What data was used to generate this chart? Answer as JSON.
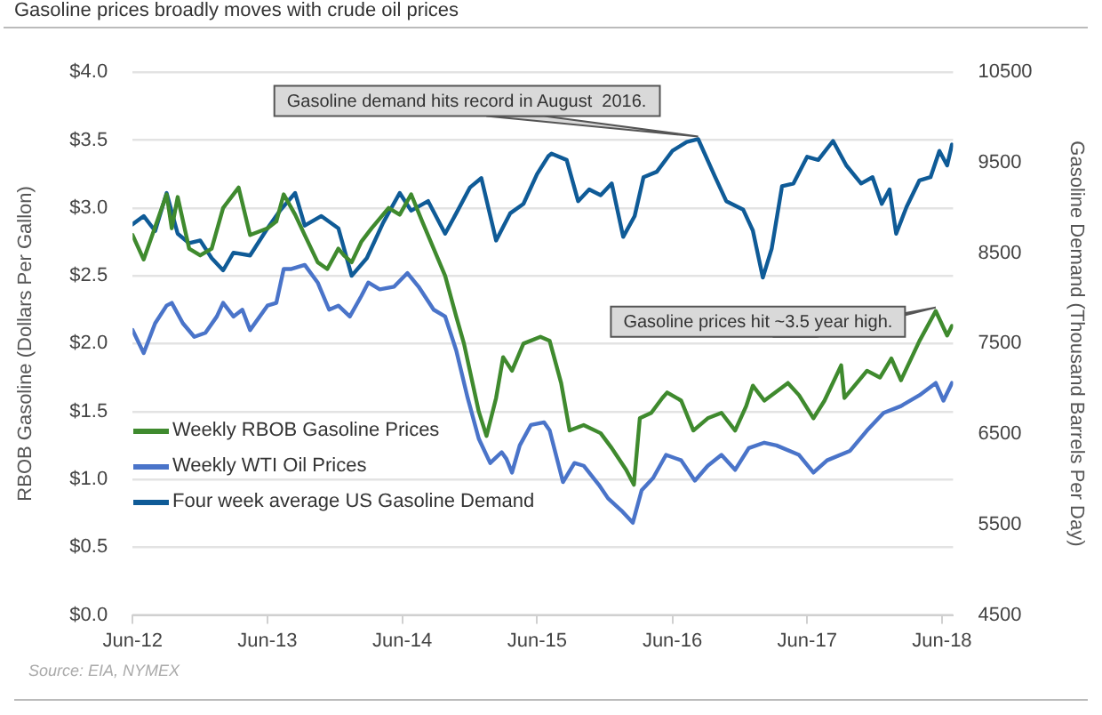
{
  "chart_data": {
    "type": "line",
    "title": "Gasoline prices broadly moves with crude oil prices",
    "ylabel": "RBOB Gasoline (Dollars Per Gallon)",
    "y2label": "Gasoline Demand (Thousand Barrels Per Day)",
    "xlim": [
      "2012-06-01",
      "2018-07-01"
    ],
    "xticks": [
      {
        "value": "2012-06-01",
        "label": "Jun-12"
      },
      {
        "value": "2013-06-01",
        "label": "Jun-13"
      },
      {
        "value": "2014-06-01",
        "label": "Jun-14"
      },
      {
        "value": "2015-06-01",
        "label": "Jun-15"
      },
      {
        "value": "2016-06-01",
        "label": "Jun-16"
      },
      {
        "value": "2017-06-01",
        "label": "Jun-17"
      },
      {
        "value": "2018-06-01",
        "label": "Jun-18"
      }
    ],
    "ylim": [
      0,
      4
    ],
    "yticks": [
      {
        "value": 0,
        "label": "$0.0"
      },
      {
        "value": 0.5,
        "label": "$0.5"
      },
      {
        "value": 1,
        "label": "$1.0"
      },
      {
        "value": 1.5,
        "label": "$1.5"
      },
      {
        "value": 2,
        "label": "$2.0"
      },
      {
        "value": 2.5,
        "label": "$2.5"
      },
      {
        "value": 3,
        "label": "$3.0"
      },
      {
        "value": 3.5,
        "label": "$3.5"
      },
      {
        "value": 4,
        "label": "$4.0"
      }
    ],
    "y2lim": [
      4500,
      10500
    ],
    "y2ticks": [
      4500,
      5500,
      6500,
      7500,
      8500,
      9500,
      10500
    ],
    "grid": "y",
    "legend": "bottom left",
    "marker": "none",
    "line_style": "solid",
    "series": [
      {
        "name": "Weekly RBOB Gasoline Prices",
        "color": "#3f8a2e",
        "x": [
          "2012-06-01",
          "2012-07-01",
          "2012-09-01",
          "2012-09-15",
          "2012-10-01",
          "2012-11-01",
          "2012-12-01",
          "2013-01-01",
          "2013-02-01",
          "2013-03-15",
          "2013-04-15",
          "2013-06-01",
          "2013-06-25",
          "2013-07-15",
          "2013-08-15",
          "2013-09-10",
          "2013-10-15",
          "2013-11-10",
          "2013-12-10",
          "2013-12-25",
          "2014-01-15",
          "2014-02-10",
          "2014-03-10",
          "2014-04-25",
          "2014-05-25",
          "2014-06-25",
          "2014-07-25",
          "2014-08-25",
          "2014-09-25",
          "2014-10-25",
          "2014-11-15",
          "2014-12-25",
          "2015-01-15",
          "2015-02-10",
          "2015-03-01",
          "2015-03-25",
          "2015-04-25",
          "2015-06-10",
          "2015-07-05",
          "2015-08-05",
          "2015-08-28",
          "2015-10-05",
          "2015-11-20",
          "2015-12-20",
          "2016-01-28",
          "2016-02-18",
          "2016-03-05",
          "2016-04-05",
          "2016-05-05",
          "2016-05-18",
          "2016-06-25",
          "2016-07-28",
          "2016-09-05",
          "2016-10-12",
          "2016-11-18",
          "2016-12-18",
          "2017-01-05",
          "2017-02-05",
          "2017-04-10",
          "2017-05-10",
          "2017-06-18",
          "2017-07-18",
          "2017-09-01",
          "2017-09-10",
          "2017-11-10",
          "2017-12-15",
          "2018-01-15",
          "2018-02-10",
          "2018-04-01",
          "2018-05-15",
          "2018-06-15",
          "2018-06-28"
        ],
        "values": [
          2.8,
          2.62,
          3.1,
          2.85,
          3.08,
          2.7,
          2.65,
          2.7,
          3.0,
          3.15,
          2.8,
          2.85,
          2.9,
          3.1,
          2.95,
          2.8,
          2.6,
          2.55,
          2.7,
          2.65,
          2.6,
          2.75,
          2.85,
          3.0,
          2.95,
          3.1,
          2.9,
          2.7,
          2.5,
          2.2,
          2.0,
          1.5,
          1.32,
          1.6,
          1.9,
          1.8,
          2.0,
          2.05,
          2.02,
          1.71,
          1.36,
          1.4,
          1.34,
          1.23,
          1.07,
          0.96,
          1.45,
          1.49,
          1.6,
          1.64,
          1.58,
          1.36,
          1.45,
          1.49,
          1.36,
          1.54,
          1.69,
          1.58,
          1.71,
          1.62,
          1.45,
          1.58,
          1.84,
          1.6,
          1.8,
          1.75,
          1.89,
          1.73,
          2.02,
          2.24,
          2.06,
          2.13
        ]
      },
      {
        "name": "Weekly WTI Oil Prices",
        "color": "#4a74c9",
        "x": [
          "2012-06-01",
          "2012-07-01",
          "2012-08-01",
          "2012-09-01",
          "2012-09-15",
          "2012-10-15",
          "2012-11-15",
          "2012-12-15",
          "2013-01-15",
          "2013-02-01",
          "2013-03-01",
          "2013-03-25",
          "2013-04-15",
          "2013-06-01",
          "2013-06-25",
          "2013-07-15",
          "2013-08-05",
          "2013-09-10",
          "2013-10-15",
          "2013-11-15",
          "2013-12-10",
          "2014-01-10",
          "2014-02-10",
          "2014-03-01",
          "2014-04-01",
          "2014-05-10",
          "2014-06-15",
          "2014-07-15",
          "2014-08-25",
          "2014-09-25",
          "2014-10-25",
          "2014-11-25",
          "2014-12-25",
          "2015-01-25",
          "2015-02-25",
          "2015-03-10",
          "2015-03-25",
          "2015-04-15",
          "2015-05-15",
          "2015-06-20",
          "2015-07-05",
          "2015-08-10",
          "2015-09-10",
          "2015-10-05",
          "2015-11-15",
          "2015-12-10",
          "2016-01-15",
          "2016-02-15",
          "2016-03-10",
          "2016-04-10",
          "2016-05-15",
          "2016-06-25",
          "2016-08-01",
          "2016-09-05",
          "2016-10-12",
          "2016-11-18",
          "2016-12-25",
          "2017-02-05",
          "2017-03-10",
          "2017-05-10",
          "2017-06-18",
          "2017-07-25",
          "2017-09-25",
          "2017-11-10",
          "2017-12-25",
          "2018-02-10",
          "2018-04-01",
          "2018-05-15",
          "2018-06-05",
          "2018-06-28"
        ],
        "values": [
          2.1,
          1.93,
          2.15,
          2.28,
          2.3,
          2.15,
          2.05,
          2.08,
          2.2,
          2.3,
          2.2,
          2.25,
          2.1,
          2.28,
          2.3,
          2.55,
          2.55,
          2.58,
          2.45,
          2.25,
          2.28,
          2.2,
          2.35,
          2.45,
          2.4,
          2.42,
          2.52,
          2.42,
          2.25,
          2.2,
          1.95,
          1.6,
          1.3,
          1.12,
          1.2,
          1.15,
          1.05,
          1.25,
          1.4,
          1.42,
          1.36,
          0.98,
          1.12,
          1.1,
          0.96,
          0.86,
          0.77,
          0.68,
          0.92,
          1.01,
          1.18,
          1.14,
          0.99,
          1.1,
          1.18,
          1.07,
          1.23,
          1.27,
          1.25,
          1.18,
          1.05,
          1.14,
          1.21,
          1.36,
          1.49,
          1.54,
          1.62,
          1.71,
          1.58,
          1.71
        ]
      },
      {
        "name": "Four week average US Gasoline Demand",
        "color": "#0f5b97",
        "axis": "y2",
        "x": [
          "2012-06-01",
          "2012-07-01",
          "2012-08-01",
          "2012-09-01",
          "2012-10-01",
          "2012-11-01",
          "2012-12-01",
          "2013-01-01",
          "2013-02-01",
          "2013-03-01",
          "2013-04-15",
          "2013-06-01",
          "2013-07-05",
          "2013-08-15",
          "2013-09-10",
          "2013-10-25",
          "2013-12-10",
          "2014-01-15",
          "2014-02-25",
          "2014-04-10",
          "2014-05-25",
          "2014-06-25",
          "2014-08-10",
          "2014-09-25",
          "2014-10-25",
          "2014-12-01",
          "2015-01-01",
          "2015-02-10",
          "2015-03-20",
          "2015-04-25",
          "2015-06-01",
          "2015-07-01",
          "2015-07-10",
          "2015-08-20",
          "2015-09-20",
          "2015-10-20",
          "2015-11-20",
          "2015-12-20",
          "2016-01-20",
          "2016-02-20",
          "2016-03-15",
          "2016-04-20",
          "2016-06-01",
          "2016-07-10",
          "2016-08-10",
          "2016-09-25",
          "2016-10-25",
          "2016-12-10",
          "2017-01-05",
          "2017-02-01",
          "2017-02-25",
          "2017-03-25",
          "2017-04-25",
          "2017-06-01",
          "2017-07-01",
          "2017-08-10",
          "2017-09-15",
          "2017-10-25",
          "2017-11-25",
          "2017-12-20",
          "2018-01-10",
          "2018-01-28",
          "2018-02-25",
          "2018-04-01",
          "2018-05-01",
          "2018-05-25",
          "2018-06-15",
          "2018-06-28"
        ],
        "values": [
          8820,
          8910,
          8745,
          9165,
          8715,
          8610,
          8640,
          8445,
          8310,
          8505,
          8475,
          8775,
          8970,
          9165,
          8805,
          8910,
          8775,
          8250,
          8445,
          8835,
          9165,
          8970,
          9075,
          8715,
          8940,
          9225,
          9330,
          8640,
          8940,
          9045,
          9375,
          9570,
          9600,
          9530,
          9075,
          9205,
          9140,
          9270,
          8680,
          8910,
          9340,
          9400,
          9630,
          9730,
          9760,
          9340,
          9075,
          8980,
          8750,
          8230,
          8550,
          9240,
          9270,
          9565,
          9530,
          9740,
          9470,
          9270,
          9340,
          9045,
          9205,
          8715,
          9010,
          9305,
          9340,
          9630,
          9470,
          9700
        ]
      }
    ],
    "annotations": [
      {
        "text": "Gasoline demand hits record in August  2016.",
        "x": "2016-08-10",
        "y": 3.5
      },
      {
        "text": "Gasoline prices hit ~3.5 year high.",
        "x": "2018-05-15",
        "y": 2.24
      },
      "Source: EIA, NYMEX"
    ]
  }
}
